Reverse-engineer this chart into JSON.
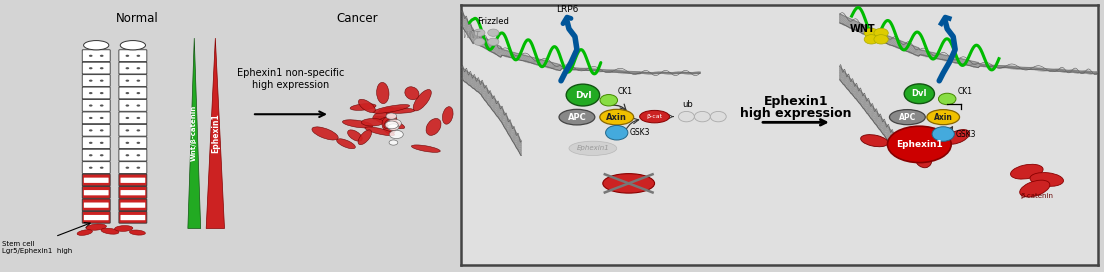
{
  "bg_color": "#d4d4d4",
  "left_panel_bg": "#d4d4d4",
  "right_panel_bg": "#e0e0e0",
  "right_panel_border": "#444444",
  "title_normal": "Normal",
  "title_cancer": "Cancer",
  "label_wnt_bcatenin": "Wnt/β-catenin",
  "label_ephexin1": "Ephexin1",
  "label_ephexin_text": "Ephexin1 non-specific\nhigh expression",
  "label_stem_cell": "Stem cell\nLgr5/Ephexin1  high",
  "right_label_lrp6": "LRP6",
  "right_label_frizzled": "Frizzled",
  "right_label_dvl": "Dvl",
  "right_label_ck1": "CK1",
  "right_label_apc": "APC",
  "right_label_axin": "Axin",
  "right_label_gsk3": "GSK3",
  "right_label_ephexin1": "Ephexin1",
  "right_label_ub": "ub",
  "right_label_wnt": "WNT",
  "right_label_ck1b": "CK1",
  "right_label_gsk3b": "GSK3",
  "right_label_ephexin1b": "Ephexin1",
  "middle_text_line1": "Ephexin1",
  "middle_text_line2": "high expression",
  "wnt_label_left": "WNT",
  "fig_width": 11.04,
  "fig_height": 2.72,
  "membrane_color": "#909090",
  "apc_color": "#888888",
  "axin_color": "#f0c000",
  "dvl_color": "#22aa22",
  "gsk3_color": "#44aadd",
  "ck1_color": "#88dd44",
  "bcat_color": "#cc2222",
  "ub_color": "#dddddd",
  "ephexin_ghost_color": "#cccccc",
  "eph_high_color": "#cc0000",
  "wnt_dot_color_gray": "#bbbbbb",
  "wnt_dot_color_yellow": "#ddcc00",
  "helix_color": "#00bb00",
  "lrp6_color": "#005599"
}
